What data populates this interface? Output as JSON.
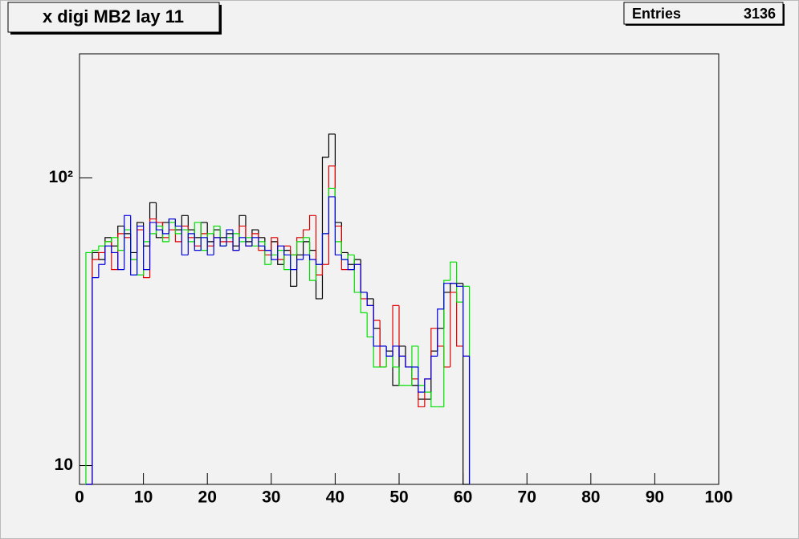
{
  "chart_data": {
    "type": "histogram",
    "title": "x digi MB2 lay 11",
    "stats": {
      "label": "Entries",
      "value": 3136
    },
    "log_y": true,
    "bins": [
      1,
      2,
      3,
      4,
      5,
      6,
      7,
      8,
      9,
      10,
      11,
      12,
      13,
      14,
      15,
      16,
      17,
      18,
      19,
      20,
      21,
      22,
      23,
      24,
      25,
      26,
      27,
      28,
      29,
      30,
      31,
      32,
      33,
      34,
      35,
      36,
      37,
      38,
      39,
      40,
      41,
      42,
      43,
      44,
      45,
      46,
      47,
      48,
      49,
      50,
      51,
      52,
      53,
      54,
      55,
      56,
      57,
      58,
      59,
      60,
      61
    ],
    "xlim": [
      0,
      100
    ],
    "xticks": [
      0,
      10,
      20,
      30,
      40,
      50,
      60,
      70,
      80,
      90,
      100
    ],
    "ylim": [
      8.6,
      270
    ],
    "yticks": [
      10,
      {
        "value": 100,
        "label": "10²"
      }
    ],
    "series": [
      {
        "color": "#000000",
        "values": [
          0,
          55,
          52,
          62,
          58,
          68,
          64,
          55,
          70,
          58,
          82,
          62,
          70,
          72,
          66,
          74,
          66,
          62,
          70,
          60,
          66,
          62,
          64,
          58,
          74,
          60,
          66,
          62,
          56,
          60,
          50,
          56,
          42,
          54,
          60,
          56,
          38,
          118,
          142,
          70,
          55,
          50,
          52,
          40,
          38,
          30,
          26,
          25,
          19,
          26,
          22,
          19,
          17,
          17,
          25,
          30,
          40,
          43,
          43,
          0
        ]
      },
      {
        "color": "#e00000",
        "values": [
          0,
          52,
          55,
          60,
          48,
          64,
          62,
          52,
          66,
          45,
          72,
          70,
          62,
          66,
          60,
          68,
          62,
          58,
          64,
          58,
          62,
          60,
          60,
          56,
          68,
          58,
          64,
          56,
          54,
          62,
          52,
          58,
          54,
          62,
          66,
          74,
          46,
          50,
          110,
          68,
          48,
          48,
          50,
          38,
          36,
          32,
          22,
          24,
          36,
          24,
          22,
          20,
          16,
          20,
          30,
          26,
          22,
          40,
          26,
          24
        ]
      },
      {
        "color": "#00e000",
        "values": [
          55,
          56,
          58,
          60,
          62,
          56,
          66,
          52,
          46,
          60,
          64,
          68,
          60,
          70,
          64,
          66,
          60,
          70,
          56,
          64,
          68,
          58,
          62,
          64,
          60,
          62,
          58,
          60,
          50,
          54,
          56,
          48,
          54,
          60,
          62,
          44,
          50,
          64,
          92,
          60,
          52,
          54,
          40,
          34,
          28,
          22,
          22,
          24,
          22,
          19,
          19,
          26,
          19,
          18,
          16,
          16,
          44,
          51,
          37,
          42
        ]
      },
      {
        "color": "#0000e0",
        "values": [
          0,
          45,
          50,
          58,
          55,
          48,
          74,
          46,
          68,
          48,
          70,
          66,
          64,
          72,
          68,
          54,
          64,
          56,
          62,
          54,
          62,
          58,
          66,
          56,
          62,
          58,
          62,
          58,
          56,
          52,
          58,
          54,
          48,
          52,
          54,
          52,
          50,
          64,
          86,
          54,
          52,
          48,
          50,
          40,
          36,
          26,
          26,
          24,
          26,
          24,
          22,
          22,
          18,
          20,
          24,
          35,
          43,
          43,
          42,
          24
        ]
      }
    ]
  }
}
